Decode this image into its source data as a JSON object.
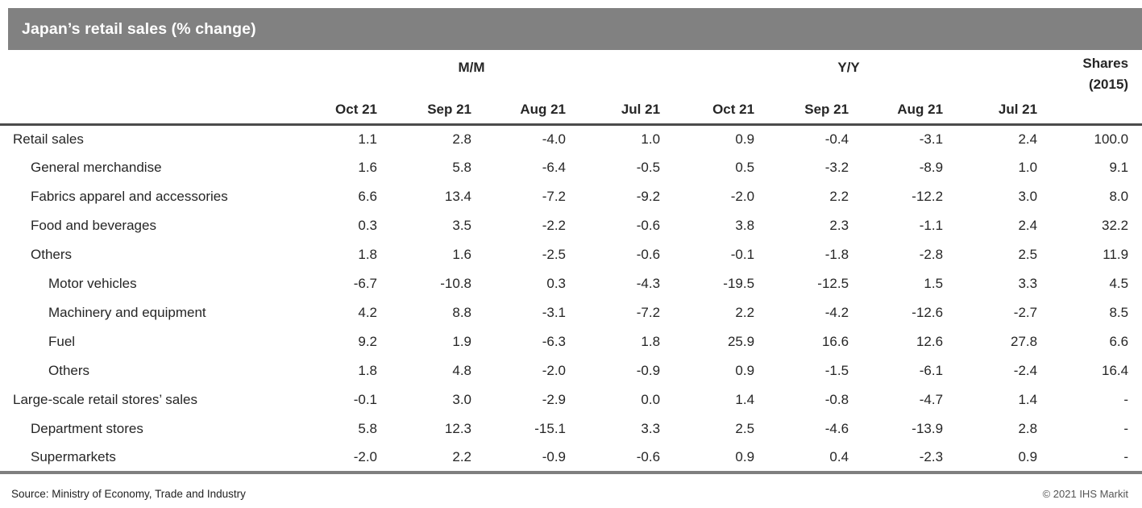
{
  "title": "Japan’s retail sales (% change)",
  "colors": {
    "title_bar_bg": "#818181",
    "title_text": "#ffffff",
    "header_rule": "#4b4b4b",
    "bottom_rule": "#7f7f7f",
    "body_text": "#262626"
  },
  "chart_data": {
    "type": "table",
    "title": "Japan’s retail sales (% change)",
    "group_headers": [
      {
        "label": "M/M",
        "span": 4
      },
      {
        "label": "Y/Y",
        "span": 4
      },
      {
        "label": "Shares (2015)",
        "span": 1
      }
    ],
    "shares_header": {
      "line1": "Shares",
      "line2": "(2015)"
    },
    "month_columns": [
      "Oct 21",
      "Sep 21",
      "Aug 21",
      "Jul 21",
      "Oct 21",
      "Sep 21",
      "Aug 21",
      "Jul 21"
    ],
    "rows": [
      {
        "label": "Retail sales",
        "indent": 0,
        "values": [
          "1.1",
          "2.8",
          "-4.0",
          "1.0",
          "0.9",
          "-0.4",
          "-3.1",
          "2.4",
          "100.0"
        ]
      },
      {
        "label": "General merchandise",
        "indent": 1,
        "values": [
          "1.6",
          "5.8",
          "-6.4",
          "-0.5",
          "0.5",
          "-3.2",
          "-8.9",
          "1.0",
          "9.1"
        ]
      },
      {
        "label": "Fabrics apparel and accessories",
        "indent": 1,
        "values": [
          "6.6",
          "13.4",
          "-7.2",
          "-9.2",
          "-2.0",
          "2.2",
          "-12.2",
          "3.0",
          "8.0"
        ]
      },
      {
        "label": "Food and beverages",
        "indent": 1,
        "values": [
          "0.3",
          "3.5",
          "-2.2",
          "-0.6",
          "3.8",
          "2.3",
          "-1.1",
          "2.4",
          "32.2"
        ]
      },
      {
        "label": "Others",
        "indent": 1,
        "values": [
          "1.8",
          "1.6",
          "-2.5",
          "-0.6",
          "-0.1",
          "-1.8",
          "-2.8",
          "2.5",
          "11.9"
        ]
      },
      {
        "label": "Motor vehicles",
        "indent": 2,
        "values": [
          "-6.7",
          "-10.8",
          "0.3",
          "-4.3",
          "-19.5",
          "-12.5",
          "1.5",
          "3.3",
          "4.5"
        ]
      },
      {
        "label": "Machinery and equipment",
        "indent": 2,
        "values": [
          "4.2",
          "8.8",
          "-3.1",
          "-7.2",
          "2.2",
          "-4.2",
          "-12.6",
          "-2.7",
          "8.5"
        ]
      },
      {
        "label": "Fuel",
        "indent": 2,
        "values": [
          "9.2",
          "1.9",
          "-6.3",
          "1.8",
          "25.9",
          "16.6",
          "12.6",
          "27.8",
          "6.6"
        ]
      },
      {
        "label": "Others",
        "indent": 2,
        "values": [
          "1.8",
          "4.8",
          "-2.0",
          "-0.9",
          "0.9",
          "-1.5",
          "-6.1",
          "-2.4",
          "16.4"
        ]
      },
      {
        "label": "Large-scale retail stores’ sales",
        "indent": 0,
        "values": [
          "-0.1",
          "3.0",
          "-2.9",
          "0.0",
          "1.4",
          "-0.8",
          "-4.7",
          "1.4",
          "-"
        ]
      },
      {
        "label": "Department stores",
        "indent": 1,
        "values": [
          "5.8",
          "12.3",
          "-15.1",
          "3.3",
          "2.5",
          "-4.6",
          "-13.9",
          "2.8",
          "-"
        ]
      },
      {
        "label": "Supermarkets",
        "indent": 1,
        "values": [
          "-2.0",
          "2.2",
          "-0.9",
          "-0.6",
          "0.9",
          "0.4",
          "-2.3",
          "0.9",
          "-"
        ]
      }
    ]
  },
  "group_mm_label": "M/M",
  "group_yy_label": "Y/Y",
  "footer": {
    "source": "Source: Ministry of Economy, Trade and Industry",
    "copyright": "© 2021 IHS Markit"
  }
}
